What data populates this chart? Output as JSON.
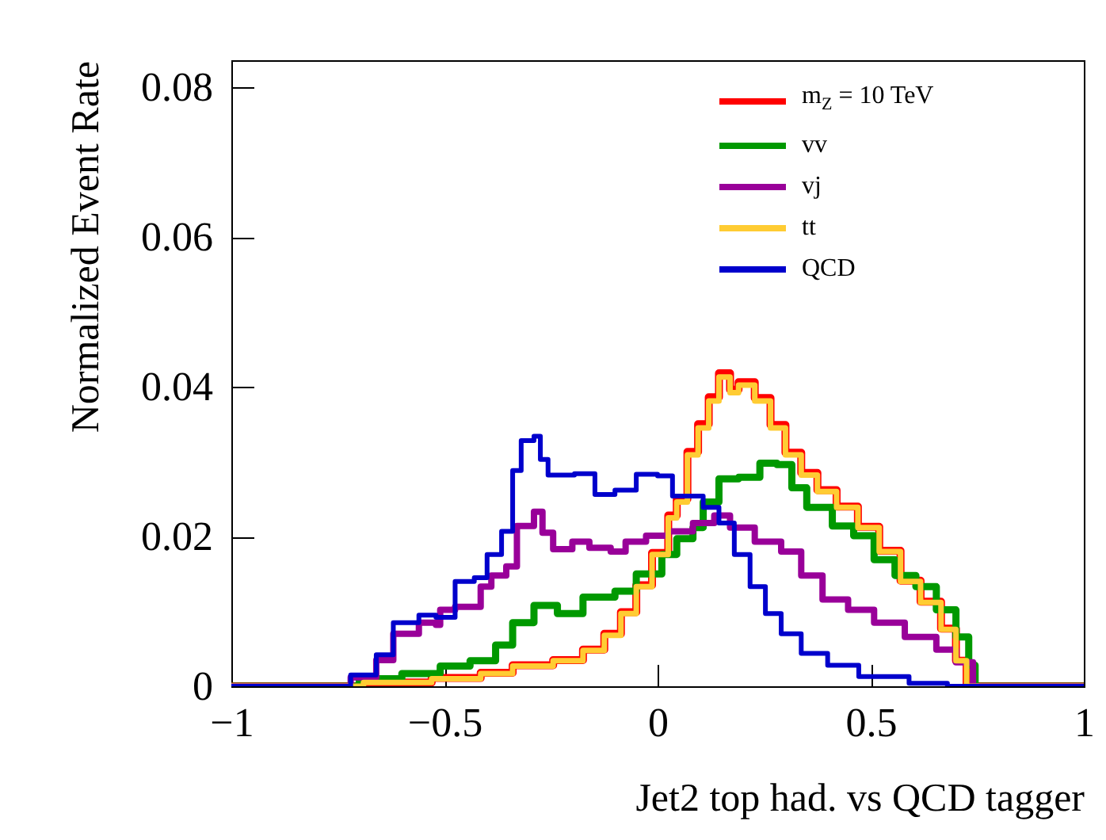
{
  "chart_data": {
    "type": "step",
    "xlabel": "Jet2 top had. vs QCD tagger",
    "ylabel": "Normalized Event Rate",
    "xlim": [
      -1,
      1
    ],
    "ylim": [
      0,
      0.0836
    ],
    "xticks": [
      {
        "value": -1,
        "label": "−1"
      },
      {
        "value": -0.5,
        "label": "−0.5"
      },
      0,
      {
        "value": 0.5,
        "label": "0.5"
      },
      1
    ],
    "yticks": [
      0,
      0.02,
      0.04,
      0.06,
      0.08
    ],
    "grid": false,
    "legend": "top right",
    "marker": "none",
    "line_style": "solid",
    "series": [
      {
        "name": "m$_{Z}$ = 10 TeV",
        "color": "#ff0000",
        "x": [
          -1,
          -0.69,
          -0.53,
          -0.415,
          -0.34,
          -0.245,
          -0.175,
          -0.125,
          -0.086,
          -0.05,
          -0.013,
          0.025,
          0.045,
          0.07,
          0.095,
          0.12,
          0.144,
          0.17,
          0.19,
          0.228,
          0.265,
          0.3,
          0.337,
          0.375,
          0.42,
          0.47,
          0.52,
          0.57,
          0.617,
          0.665,
          0.7,
          0.725,
          1
        ],
        "values": [
          0,
          0.0005,
          0.0011,
          0.0018,
          0.0028,
          0.0035,
          0.0049,
          0.007,
          0.0099,
          0.0135,
          0.0178,
          0.0228,
          0.025,
          0.0313,
          0.035,
          0.0386,
          0.0418,
          0.0396,
          0.0406,
          0.0385,
          0.0349,
          0.0312,
          0.0285,
          0.0262,
          0.024,
          0.0213,
          0.0181,
          0.0141,
          0.0113,
          0.0077,
          0.0034,
          0,
          0
        ]
      },
      {
        "name": "vv",
        "color": "#009900",
        "x": [
          -1,
          -0.7,
          -0.6,
          -0.51,
          -0.44,
          -0.38,
          -0.34,
          -0.29,
          -0.235,
          -0.175,
          -0.1,
          -0.05,
          0.01,
          0.045,
          0.083,
          0.107,
          0.144,
          0.19,
          0.24,
          0.28,
          0.315,
          0.35,
          0.41,
          0.46,
          0.508,
          0.557,
          0.606,
          0.654,
          0.7,
          0.73,
          0.745,
          1
        ],
        "values": [
          0,
          0.001,
          0.0017,
          0.0027,
          0.0034,
          0.0055,
          0.0085,
          0.0108,
          0.0097,
          0.0119,
          0.0127,
          0.015,
          0.0176,
          0.0197,
          0.0212,
          0.0246,
          0.0277,
          0.0279,
          0.0298,
          0.0296,
          0.0265,
          0.0239,
          0.0214,
          0.0201,
          0.0169,
          0.0148,
          0.0133,
          0.0102,
          0.0066,
          0.0028,
          0,
          0
        ]
      },
      {
        "name": "vj",
        "color": "#990099",
        "x": [
          -1,
          -0.72,
          -0.66,
          -0.62,
          -0.56,
          -0.52,
          -0.51,
          -0.475,
          -0.415,
          -0.39,
          -0.355,
          -0.33,
          -0.29,
          -0.27,
          -0.245,
          -0.2,
          -0.16,
          -0.11,
          -0.075,
          -0.027,
          0.025,
          0.083,
          0.133,
          0.17,
          0.228,
          0.29,
          0.337,
          0.387,
          0.447,
          0.508,
          0.58,
          0.654,
          0.7,
          0.74,
          1
        ],
        "values": [
          0,
          0.0012,
          0.0035,
          0.007,
          0.0085,
          0.0082,
          0.0102,
          0.0106,
          0.0133,
          0.0148,
          0.016,
          0.0214,
          0.0233,
          0.0205,
          0.0183,
          0.0193,
          0.0185,
          0.018,
          0.0193,
          0.0201,
          0.0207,
          0.0218,
          0.0228,
          0.0212,
          0.0193,
          0.018,
          0.0148,
          0.0116,
          0.0102,
          0.0085,
          0.0066,
          0.0049,
          0.0032,
          0,
          0
        ]
      },
      {
        "name": "tt",
        "color": "#ffcc33",
        "x": [
          -1,
          -0.69,
          -0.53,
          -0.415,
          -0.34,
          -0.245,
          -0.175,
          -0.125,
          -0.086,
          -0.05,
          -0.013,
          0.025,
          0.045,
          0.07,
          0.095,
          0.12,
          0.144,
          0.17,
          0.19,
          0.228,
          0.265,
          0.3,
          0.337,
          0.375,
          0.42,
          0.47,
          0.52,
          0.57,
          0.617,
          0.665,
          0.7,
          0.725,
          1
        ],
        "values": [
          0,
          0.0005,
          0.001,
          0.0017,
          0.0027,
          0.0034,
          0.0048,
          0.0068,
          0.0097,
          0.0133,
          0.0176,
          0.0225,
          0.0246,
          0.0309,
          0.0345,
          0.0381,
          0.0413,
          0.0392,
          0.0402,
          0.0381,
          0.0345,
          0.0309,
          0.0282,
          0.026,
          0.0239,
          0.0212,
          0.018,
          0.014,
          0.0112,
          0.0076,
          0.0034,
          0,
          0
        ]
      },
      {
        "name": "QCD",
        "color": "#0000cc",
        "x": [
          -1,
          -0.72,
          -0.66,
          -0.62,
          -0.56,
          -0.52,
          -0.475,
          -0.43,
          -0.4,
          -0.366,
          -0.34,
          -0.32,
          -0.29,
          -0.275,
          -0.257,
          -0.195,
          -0.147,
          -0.1,
          -0.05,
          0.0,
          0.035,
          0.045,
          0.107,
          0.144,
          0.18,
          0.217,
          0.253,
          0.29,
          0.337,
          0.399,
          0.472,
          0.59,
          0.68,
          1
        ],
        "values": [
          0,
          0.0015,
          0.0042,
          0.0085,
          0.0095,
          0.0092,
          0.014,
          0.0145,
          0.0176,
          0.0207,
          0.0288,
          0.0328,
          0.0334,
          0.0303,
          0.0282,
          0.0284,
          0.0256,
          0.0262,
          0.0283,
          0.0281,
          0.0254,
          0.0254,
          0.0239,
          0.0218,
          0.0176,
          0.0133,
          0.0097,
          0.007,
          0.0044,
          0.0028,
          0.0013,
          0.0004,
          0,
          0
        ]
      }
    ]
  }
}
